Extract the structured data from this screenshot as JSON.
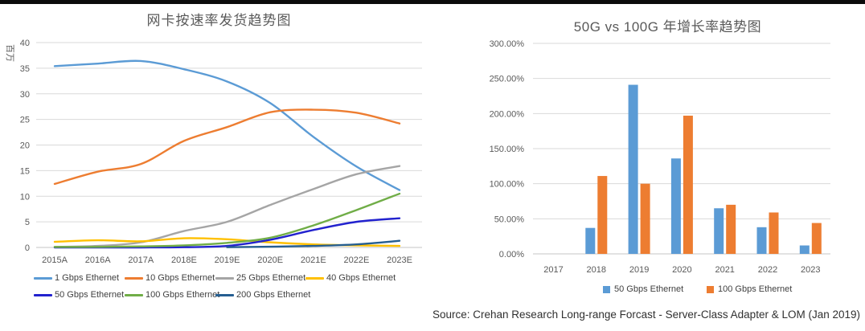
{
  "page": {
    "source": "Source: Crehan Research Long-range Forcast - Server-Class Adapter & LOM (Jan 2019)"
  },
  "chart_data": [
    {
      "type": "line",
      "title": "网卡按速率发货趋势图",
      "ylabel": "百万",
      "xlabel": "",
      "categories": [
        "2015A",
        "2016A",
        "2017A",
        "2018E",
        "2019E",
        "2020E",
        "2021E",
        "2022E",
        "2023E"
      ],
      "ylim": [
        0,
        40
      ],
      "ytick_step": 5,
      "yticks": [
        "0",
        "5",
        "10",
        "15",
        "20",
        "25",
        "30",
        "35",
        "40"
      ],
      "grid": true,
      "legend_position": "bottom-left",
      "series": [
        {
          "name": "1 Gbps Ethernet",
          "color": "#5B9BD5",
          "values": [
            35.4,
            35.9,
            36.4,
            34.8,
            32.4,
            28.2,
            21.6,
            15.8,
            11.2
          ]
        },
        {
          "name": "10 Gbps Ethernet",
          "color": "#ED7D31",
          "values": [
            12.4,
            14.8,
            16.3,
            20.8,
            23.5,
            26.4,
            26.9,
            26.3,
            24.2
          ]
        },
        {
          "name": "25 Gbps Ethernet",
          "color": "#A5A5A5",
          "values": [
            0.1,
            0.3,
            1.0,
            3.2,
            5.0,
            8.3,
            11.4,
            14.3,
            15.9
          ]
        },
        {
          "name": "40 Gbps Ethernet",
          "color": "#FFC000",
          "values": [
            1.1,
            1.4,
            1.2,
            1.8,
            1.6,
            1.0,
            0.6,
            0.4,
            0.3
          ]
        },
        {
          "name": "50 Gbps Ethernet",
          "color": "#2222CE",
          "values": [
            0,
            0,
            0,
            0.05,
            0.3,
            1.5,
            3.4,
            5.0,
            5.7
          ]
        },
        {
          "name": "100 Gbps Ethernet",
          "color": "#70AD47",
          "values": [
            0.1,
            0.1,
            0.2,
            0.4,
            0.9,
            1.9,
            4.3,
            7.3,
            10.5
          ]
        },
        {
          "name": "200 Gbps Ethernet",
          "color": "#255E91",
          "values": [
            null,
            null,
            null,
            null,
            0.05,
            0.15,
            0.3,
            0.6,
            1.3
          ]
        }
      ]
    },
    {
      "type": "bar",
      "title": "50G vs 100G 年增长率趋势图",
      "categories": [
        "2017",
        "2018",
        "2019",
        "2020",
        "2021",
        "2022",
        "2023"
      ],
      "ylim": [
        0,
        300
      ],
      "ytick_step": 50,
      "yticks": [
        "0.00%",
        "50.00%",
        "100.00%",
        "150.00%",
        "200.00%",
        "250.00%",
        "300.00%"
      ],
      "grid": true,
      "legend_position": "bottom-center",
      "series": [
        {
          "name": "50 Gbps Ethernet",
          "color": "#5B9BD5",
          "values": [
            0,
            37,
            241,
            136,
            65,
            38,
            12
          ]
        },
        {
          "name": "100 Gbps Ethernet",
          "color": "#ED7D31",
          "values": [
            0,
            111,
            100,
            197,
            70,
            59,
            44
          ]
        }
      ]
    }
  ]
}
